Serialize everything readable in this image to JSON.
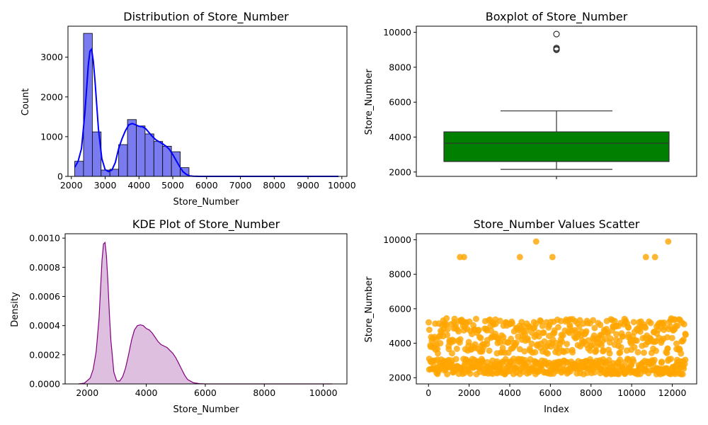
{
  "chart_data": [
    {
      "type": "bar",
      "title": "Distribution of Store_Number",
      "xlabel": "Store_Number",
      "ylabel": "Count",
      "xlim": [
        1900,
        10150
      ],
      "ylim": [
        0,
        3780
      ],
      "x_ticks": [
        2000,
        3000,
        4000,
        5000,
        6000,
        7000,
        8000,
        9000,
        10000
      ],
      "y_ticks": [
        0,
        1000,
        2000,
        3000
      ],
      "bin_width": 260,
      "bins": [
        {
          "start": 2100,
          "count": 380
        },
        {
          "start": 2360,
          "count": 3600
        },
        {
          "start": 2620,
          "count": 1120
        },
        {
          "start": 2880,
          "count": 160
        },
        {
          "start": 3140,
          "count": 180
        },
        {
          "start": 3400,
          "count": 800
        },
        {
          "start": 3660,
          "count": 1430
        },
        {
          "start": 3920,
          "count": 1270
        },
        {
          "start": 4180,
          "count": 1070
        },
        {
          "start": 4440,
          "count": 880
        },
        {
          "start": 4700,
          "count": 760
        },
        {
          "start": 4960,
          "count": 620
        },
        {
          "start": 5220,
          "count": 220
        }
      ],
      "kde_line": {
        "x": [
          2100,
          2200,
          2300,
          2400,
          2500,
          2550,
          2600,
          2650,
          2700,
          2800,
          2900,
          3000,
          3100,
          3200,
          3300,
          3400,
          3500,
          3600,
          3700,
          3800,
          3900,
          4000,
          4100,
          4200,
          4300,
          4400,
          4500,
          4600,
          4700,
          4800,
          4900,
          5000,
          5100,
          5200,
          5300,
          5400,
          5500,
          5600,
          5800,
          6000,
          7000,
          8000,
          9000,
          9900
        ],
        "y": [
          230,
          380,
          700,
          1600,
          2800,
          3150,
          3200,
          2900,
          2400,
          1200,
          450,
          170,
          120,
          160,
          350,
          700,
          950,
          1150,
          1300,
          1330,
          1300,
          1260,
          1250,
          1200,
          1100,
          1000,
          920,
          870,
          820,
          760,
          680,
          550,
          400,
          250,
          120,
          50,
          15,
          5,
          0,
          0,
          0,
          0,
          0,
          0
        ]
      },
      "colors": {
        "bar": "#7b7bf0",
        "edge": "#000000",
        "line": "#0000ff"
      }
    },
    {
      "type": "box",
      "title": "Boxplot of Store_Number",
      "ylabel": "Store_Number",
      "ylim": [
        1750,
        10350
      ],
      "y_ticks": [
        2000,
        4000,
        6000,
        8000,
        10000
      ],
      "whisker_low": 2150,
      "q1": 2600,
      "median": 3650,
      "q3": 4300,
      "whisker_high": 5500,
      "outliers": [
        9000,
        9050,
        9100,
        9900
      ],
      "colors": {
        "box": "#007f00"
      }
    },
    {
      "type": "area",
      "title": "KDE Plot of Store_Number",
      "xlabel": "Store_Number",
      "ylabel": "Density",
      "xlim": [
        1250,
        10800
      ],
      "ylim": [
        0,
        0.00103
      ],
      "x_ticks": [
        2000,
        4000,
        6000,
        8000,
        10000
      ],
      "y_ticks": [
        "0.0000",
        "0.0002",
        "0.0004",
        "0.0006",
        "0.0008",
        "0.0010"
      ],
      "y_tick_values": [
        0,
        0.0002,
        0.0004,
        0.0006,
        0.0008,
        0.001
      ],
      "curve": {
        "x": [
          1700,
          1900,
          2100,
          2200,
          2300,
          2400,
          2450,
          2500,
          2550,
          2600,
          2650,
          2700,
          2750,
          2800,
          2900,
          3000,
          3100,
          3200,
          3300,
          3400,
          3500,
          3600,
          3700,
          3800,
          3900,
          4000,
          4100,
          4200,
          4300,
          4400,
          4500,
          4600,
          4700,
          4800,
          4900,
          5000,
          5100,
          5200,
          5300,
          5400,
          5600,
          5800,
          6000,
          7000,
          8000,
          9000,
          10300
        ],
        "y": [
          0,
          5e-06,
          4e-05,
          0.0001,
          0.00022,
          0.00045,
          0.00065,
          0.00085,
          0.00096,
          0.00097,
          0.00088,
          0.0007,
          0.00048,
          0.0003,
          8e-05,
          2e-05,
          2e-05,
          5e-05,
          0.00011,
          0.0002,
          0.0003,
          0.00037,
          0.0004,
          0.000405,
          0.0004,
          0.00038,
          0.00037,
          0.00035,
          0.00032,
          0.00029,
          0.00027,
          0.00026,
          0.00025,
          0.00023,
          0.00021,
          0.00018,
          0.00014,
          0.0001,
          6e-05,
          3e-05,
          8e-06,
          2e-06,
          0,
          0,
          0,
          0,
          0
        ]
      },
      "colors": {
        "line": "#800080",
        "fill": "#dfbfdf"
      }
    },
    {
      "type": "scatter",
      "title": "Store_Number Values Scatter",
      "xlabel": "Index",
      "ylabel": "Store_Number",
      "xlim": [
        -600,
        13200
      ],
      "ylim": [
        1640,
        10350
      ],
      "x_ticks": [
        0,
        2000,
        4000,
        6000,
        8000,
        10000,
        12000
      ],
      "y_ticks": [
        2000,
        4000,
        6000,
        8000,
        10000
      ],
      "index_range": [
        0,
        12600
      ],
      "bands": [
        [
          2200,
          3100
        ],
        [
          3400,
          5450
        ]
      ],
      "outliers": [
        {
          "x": 1550,
          "y": 9000
        },
        {
          "x": 1750,
          "y": 9000
        },
        {
          "x": 4500,
          "y": 9000
        },
        {
          "x": 5300,
          "y": 9900
        },
        {
          "x": 6100,
          "y": 9000
        },
        {
          "x": 10700,
          "y": 9000
        },
        {
          "x": 11150,
          "y": 9000
        },
        {
          "x": 11800,
          "y": 9900
        }
      ],
      "colors": {
        "point": "#ffa500"
      }
    }
  ]
}
